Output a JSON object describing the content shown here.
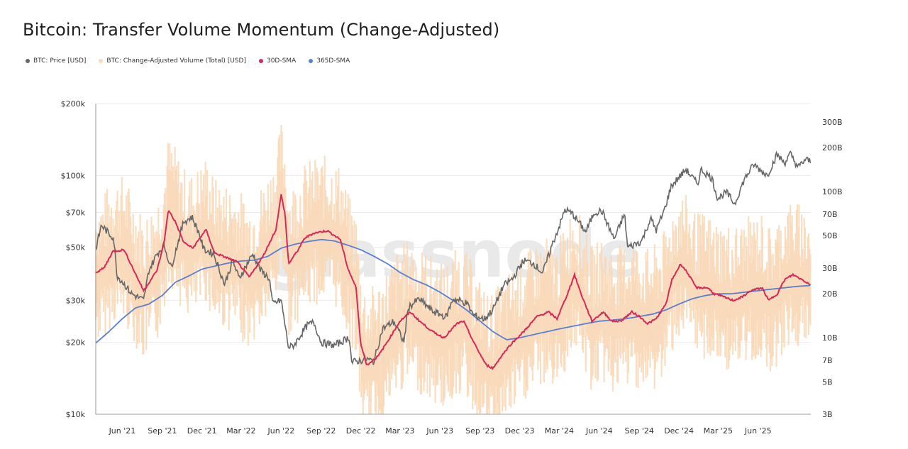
{
  "title": "Bitcoin: Transfer Volume Momentum (Change-Adjusted)",
  "watermark": "glassnode",
  "legend": [
    {
      "label": "BTC: Price [USD]",
      "color": "#666666"
    },
    {
      "label": "BTC: Change-Adjusted Volume (Total) [USD]",
      "color": "#f9d9b8"
    },
    {
      "label": "30D-SMA",
      "color": "#d6295a"
    },
    {
      "label": "365D-SMA",
      "color": "#5b7fd0"
    }
  ],
  "chart_data": {
    "type": "line",
    "title": "Bitcoin: Transfer Volume Momentum (Change-Adjusted)",
    "x_range": [
      "2021-04-01",
      "2025-09-30"
    ],
    "x_ticks": [
      "Jun '21",
      "Sep '21",
      "Dec '21",
      "Mar '22",
      "Jun '22",
      "Sep '22",
      "Dec '22",
      "Mar '23",
      "Jun '23",
      "Sep '23",
      "Dec '23",
      "Mar '24",
      "Jun '24",
      "Sep '24",
      "Dec '24",
      "Mar '25",
      "Jun '25"
    ],
    "x_tick_dates": [
      "2021-06-01",
      "2021-09-01",
      "2021-12-01",
      "2022-03-01",
      "2022-06-01",
      "2022-09-01",
      "2022-12-01",
      "2023-03-01",
      "2023-06-01",
      "2023-09-01",
      "2023-12-01",
      "2024-03-01",
      "2024-06-01",
      "2024-09-01",
      "2024-12-01",
      "2025-03-01",
      "2025-06-01"
    ],
    "y_left": {
      "scale": "log",
      "range": [
        10000,
        200000
      ],
      "ticks": [
        {
          "value": 200000,
          "label": "$200k"
        },
        {
          "value": 100000,
          "label": "$100k"
        },
        {
          "value": 70000,
          "label": "$70k"
        },
        {
          "value": 50000,
          "label": "$50k"
        },
        {
          "value": 30000,
          "label": "$30k"
        },
        {
          "value": 20000,
          "label": "$20k"
        },
        {
          "value": 10000,
          "label": "$10k"
        }
      ]
    },
    "y_right": {
      "scale": "log",
      "range": [
        3000000000,
        400000000000
      ],
      "ticks": [
        {
          "value": 300000000000,
          "label": "300B"
        },
        {
          "value": 200000000000,
          "label": "200B"
        },
        {
          "value": 100000000000,
          "label": "100B"
        },
        {
          "value": 70000000000,
          "label": "70B"
        },
        {
          "value": 50000000000,
          "label": "50B"
        },
        {
          "value": 30000000000,
          "label": "30B"
        },
        {
          "value": 20000000000,
          "label": "20B"
        },
        {
          "value": 10000000000,
          "label": "10B"
        },
        {
          "value": 7000000000,
          "label": "7B"
        },
        {
          "value": 5000000000,
          "label": "5B"
        },
        {
          "value": 3000000000,
          "label": "3B"
        }
      ]
    },
    "grid": true,
    "series": [
      {
        "name": "BTC: Price [USD]",
        "axis": "left",
        "color": "#666666",
        "points": [
          [
            "2021-04-01",
            49000
          ],
          [
            "2021-04-14",
            62000
          ],
          [
            "2021-05-01",
            57000
          ],
          [
            "2021-05-12",
            55000
          ],
          [
            "2021-05-20",
            38000
          ],
          [
            "2021-06-01",
            36000
          ],
          [
            "2021-06-22",
            32000
          ],
          [
            "2021-07-20",
            30000
          ],
          [
            "2021-08-01",
            40000
          ],
          [
            "2021-08-20",
            47000
          ],
          [
            "2021-09-05",
            51000
          ],
          [
            "2021-09-21",
            41000
          ],
          [
            "2021-10-10",
            55000
          ],
          [
            "2021-10-20",
            64000
          ],
          [
            "2021-11-08",
            67000
          ],
          [
            "2021-11-25",
            57000
          ],
          [
            "2021-12-05",
            49000
          ],
          [
            "2021-12-28",
            47000
          ],
          [
            "2022-01-22",
            35000
          ],
          [
            "2022-02-10",
            44000
          ],
          [
            "2022-02-24",
            37000
          ],
          [
            "2022-03-28",
            47000
          ],
          [
            "2022-04-15",
            40000
          ],
          [
            "2022-05-05",
            37000
          ],
          [
            "2022-05-12",
            29000
          ],
          [
            "2022-06-01",
            30000
          ],
          [
            "2022-06-18",
            19000
          ],
          [
            "2022-07-01",
            19500
          ],
          [
            "2022-07-30",
            23500
          ],
          [
            "2022-08-15",
            24300
          ],
          [
            "2022-09-01",
            20000
          ],
          [
            "2022-10-01",
            19400
          ],
          [
            "2022-11-05",
            21000
          ],
          [
            "2022-11-10",
            16500
          ],
          [
            "2022-12-15",
            17000
          ],
          [
            "2022-12-31",
            16600
          ],
          [
            "2023-01-20",
            22800
          ],
          [
            "2023-02-15",
            24500
          ],
          [
            "2023-03-10",
            20000
          ],
          [
            "2023-03-20",
            28000
          ],
          [
            "2023-04-14",
            30400
          ],
          [
            "2023-05-15",
            27000
          ],
          [
            "2023-06-15",
            25500
          ],
          [
            "2023-07-01",
            30500
          ],
          [
            "2023-08-01",
            29200
          ],
          [
            "2023-08-17",
            26000
          ],
          [
            "2023-09-11",
            25000
          ],
          [
            "2023-10-01",
            27500
          ],
          [
            "2023-10-25",
            34500
          ],
          [
            "2023-11-15",
            37000
          ],
          [
            "2023-12-10",
            44000
          ],
          [
            "2024-01-01",
            43000
          ],
          [
            "2024-01-23",
            39000
          ],
          [
            "2024-02-15",
            52000
          ],
          [
            "2024-03-05",
            64000
          ],
          [
            "2024-03-14",
            72000
          ],
          [
            "2024-04-01",
            69000
          ],
          [
            "2024-05-01",
            58000
          ],
          [
            "2024-05-20",
            70000
          ],
          [
            "2024-06-07",
            71000
          ],
          [
            "2024-07-05",
            54000
          ],
          [
            "2024-07-29",
            69000
          ],
          [
            "2024-08-05",
            50000
          ],
          [
            "2024-09-06",
            53000
          ],
          [
            "2024-09-27",
            66000
          ],
          [
            "2024-10-10",
            59000
          ],
          [
            "2024-10-29",
            72000
          ],
          [
            "2024-11-13",
            90000
          ],
          [
            "2024-12-05",
            100000
          ],
          [
            "2024-12-17",
            106000
          ],
          [
            "2025-01-13",
            92000
          ],
          [
            "2025-01-21",
            106000
          ],
          [
            "2025-02-15",
            97000
          ],
          [
            "2025-02-28",
            80000
          ],
          [
            "2025-03-20",
            85000
          ],
          [
            "2025-04-08",
            76000
          ],
          [
            "2025-05-01",
            97000
          ],
          [
            "2025-05-22",
            111000
          ],
          [
            "2025-06-22",
            100000
          ],
          [
            "2025-07-14",
            122000
          ],
          [
            "2025-08-01",
            113000
          ],
          [
            "2025-08-14",
            123000
          ],
          [
            "2025-09-01",
            108000
          ],
          [
            "2025-09-18",
            117000
          ],
          [
            "2025-09-30",
            114000
          ]
        ]
      },
      {
        "name": "30D-SMA",
        "axis": "right",
        "color": "#d6295a",
        "points": [
          [
            "2021-04-01",
            28000000000
          ],
          [
            "2021-04-20",
            30000000000
          ],
          [
            "2021-05-10",
            39000000000
          ],
          [
            "2021-06-05",
            40000000000
          ],
          [
            "2021-06-25",
            30000000000
          ],
          [
            "2021-07-20",
            21000000000
          ],
          [
            "2021-08-20",
            29000000000
          ],
          [
            "2021-09-05",
            45000000000
          ],
          [
            "2021-09-15",
            75000000000
          ],
          [
            "2021-10-01",
            62000000000
          ],
          [
            "2021-10-20",
            45000000000
          ],
          [
            "2021-11-10",
            41000000000
          ],
          [
            "2021-12-10",
            55000000000
          ],
          [
            "2021-12-30",
            38000000000
          ],
          [
            "2022-01-20",
            36000000000
          ],
          [
            "2022-02-20",
            33000000000
          ],
          [
            "2022-03-20",
            26000000000
          ],
          [
            "2022-04-20",
            36000000000
          ],
          [
            "2022-05-20",
            55000000000
          ],
          [
            "2022-06-01",
            95000000000
          ],
          [
            "2022-06-10",
            70000000000
          ],
          [
            "2022-06-18",
            32000000000
          ],
          [
            "2022-07-10",
            40000000000
          ],
          [
            "2022-07-25",
            48000000000
          ],
          [
            "2022-08-15",
            52000000000
          ],
          [
            "2022-09-15",
            54000000000
          ],
          [
            "2022-10-15",
            47000000000
          ],
          [
            "2022-11-01",
            30000000000
          ],
          [
            "2022-11-20",
            22000000000
          ],
          [
            "2022-12-01",
            9000000000
          ],
          [
            "2022-12-15",
            6500000000
          ],
          [
            "2023-01-10",
            7500000000
          ],
          [
            "2023-02-01",
            9500000000
          ],
          [
            "2023-03-01",
            13000000000
          ],
          [
            "2023-03-25",
            15000000000
          ],
          [
            "2023-04-15",
            13000000000
          ],
          [
            "2023-05-15",
            11000000000
          ],
          [
            "2023-06-10",
            10000000000
          ],
          [
            "2023-07-10",
            12500000000
          ],
          [
            "2023-07-25",
            13000000000
          ],
          [
            "2023-08-20",
            9000000000
          ],
          [
            "2023-09-15",
            6500000000
          ],
          [
            "2023-10-01",
            6200000000
          ],
          [
            "2023-10-20",
            7500000000
          ],
          [
            "2023-11-10",
            9000000000
          ],
          [
            "2023-12-10",
            11000000000
          ],
          [
            "2024-01-10",
            14000000000
          ],
          [
            "2024-02-05",
            15000000000
          ],
          [
            "2024-02-25",
            13500000000
          ],
          [
            "2024-03-20",
            20000000000
          ],
          [
            "2024-04-05",
            27000000000
          ],
          [
            "2024-04-20",
            20000000000
          ],
          [
            "2024-05-15",
            13000000000
          ],
          [
            "2024-06-10",
            15000000000
          ],
          [
            "2024-06-30",
            13000000000
          ],
          [
            "2024-07-20",
            13000000000
          ],
          [
            "2024-08-15",
            15000000000
          ],
          [
            "2024-09-01",
            14000000000
          ],
          [
            "2024-09-20",
            12500000000
          ],
          [
            "2024-10-10",
            13500000000
          ],
          [
            "2024-11-01",
            17000000000
          ],
          [
            "2024-11-15",
            25000000000
          ],
          [
            "2024-12-05",
            32000000000
          ],
          [
            "2024-12-20",
            28000000000
          ],
          [
            "2025-01-10",
            22000000000
          ],
          [
            "2025-02-05",
            22000000000
          ],
          [
            "2025-02-20",
            20000000000
          ],
          [
            "2025-03-15",
            19000000000
          ],
          [
            "2025-04-05",
            18000000000
          ],
          [
            "2025-04-25",
            19000000000
          ],
          [
            "2025-05-15",
            21000000000
          ],
          [
            "2025-06-10",
            22000000000
          ],
          [
            "2025-06-25",
            18000000000
          ],
          [
            "2025-07-15",
            20000000000
          ],
          [
            "2025-08-01",
            25000000000
          ],
          [
            "2025-08-20",
            27000000000
          ],
          [
            "2025-09-10",
            25000000000
          ],
          [
            "2025-09-30",
            23000000000
          ]
        ]
      },
      {
        "name": "365D-SMA",
        "axis": "right",
        "color": "#5b7fd0",
        "points": [
          [
            "2021-04-01",
            9200000000
          ],
          [
            "2021-05-01",
            11000000000
          ],
          [
            "2021-06-01",
            13500000000
          ],
          [
            "2021-07-01",
            16000000000
          ],
          [
            "2021-08-01",
            17000000000
          ],
          [
            "2021-09-01",
            19500000000
          ],
          [
            "2021-10-01",
            24000000000
          ],
          [
            "2021-11-01",
            26500000000
          ],
          [
            "2021-12-01",
            29500000000
          ],
          [
            "2022-01-01",
            31000000000
          ],
          [
            "2022-02-01",
            32500000000
          ],
          [
            "2022-03-01",
            33500000000
          ],
          [
            "2022-04-01",
            34000000000
          ],
          [
            "2022-05-01",
            36000000000
          ],
          [
            "2022-06-01",
            41000000000
          ],
          [
            "2022-07-01",
            43500000000
          ],
          [
            "2022-08-01",
            45500000000
          ],
          [
            "2022-09-01",
            47000000000
          ],
          [
            "2022-10-01",
            46000000000
          ],
          [
            "2022-11-01",
            43000000000
          ],
          [
            "2022-12-01",
            40000000000
          ],
          [
            "2023-01-01",
            36000000000
          ],
          [
            "2023-02-01",
            32000000000
          ],
          [
            "2023-03-01",
            28000000000
          ],
          [
            "2023-04-01",
            25000000000
          ],
          [
            "2023-05-01",
            23000000000
          ],
          [
            "2023-06-01",
            20500000000
          ],
          [
            "2023-07-01",
            18000000000
          ],
          [
            "2023-08-01",
            15500000000
          ],
          [
            "2023-09-01",
            13000000000
          ],
          [
            "2023-10-01",
            11000000000
          ],
          [
            "2023-11-01",
            9700000000
          ],
          [
            "2023-12-01",
            10000000000
          ],
          [
            "2024-01-01",
            10500000000
          ],
          [
            "2024-02-01",
            11000000000
          ],
          [
            "2024-03-01",
            11500000000
          ],
          [
            "2024-04-01",
            12000000000
          ],
          [
            "2024-05-01",
            12500000000
          ],
          [
            "2024-06-01",
            13000000000
          ],
          [
            "2024-07-01",
            13200000000
          ],
          [
            "2024-08-01",
            13500000000
          ],
          [
            "2024-09-01",
            14000000000
          ],
          [
            "2024-10-01",
            14500000000
          ],
          [
            "2024-11-01",
            15500000000
          ],
          [
            "2024-12-01",
            17000000000
          ],
          [
            "2025-01-01",
            18500000000
          ],
          [
            "2025-02-01",
            19500000000
          ],
          [
            "2025-03-01",
            20000000000
          ],
          [
            "2025-04-01",
            20000000000
          ],
          [
            "2025-05-01",
            20500000000
          ],
          [
            "2025-06-01",
            21000000000
          ],
          [
            "2025-07-01",
            21500000000
          ],
          [
            "2025-08-01",
            22000000000
          ],
          [
            "2025-09-01",
            22500000000
          ],
          [
            "2025-09-30",
            22800000000
          ]
        ]
      },
      {
        "name": "BTC: Change-Adjusted Volume (Total) [USD]",
        "axis": "right",
        "color": "#f9d9b8",
        "style": "daily noisy bars",
        "approx_range": [
          3000000000,
          380000000000
        ]
      }
    ]
  }
}
